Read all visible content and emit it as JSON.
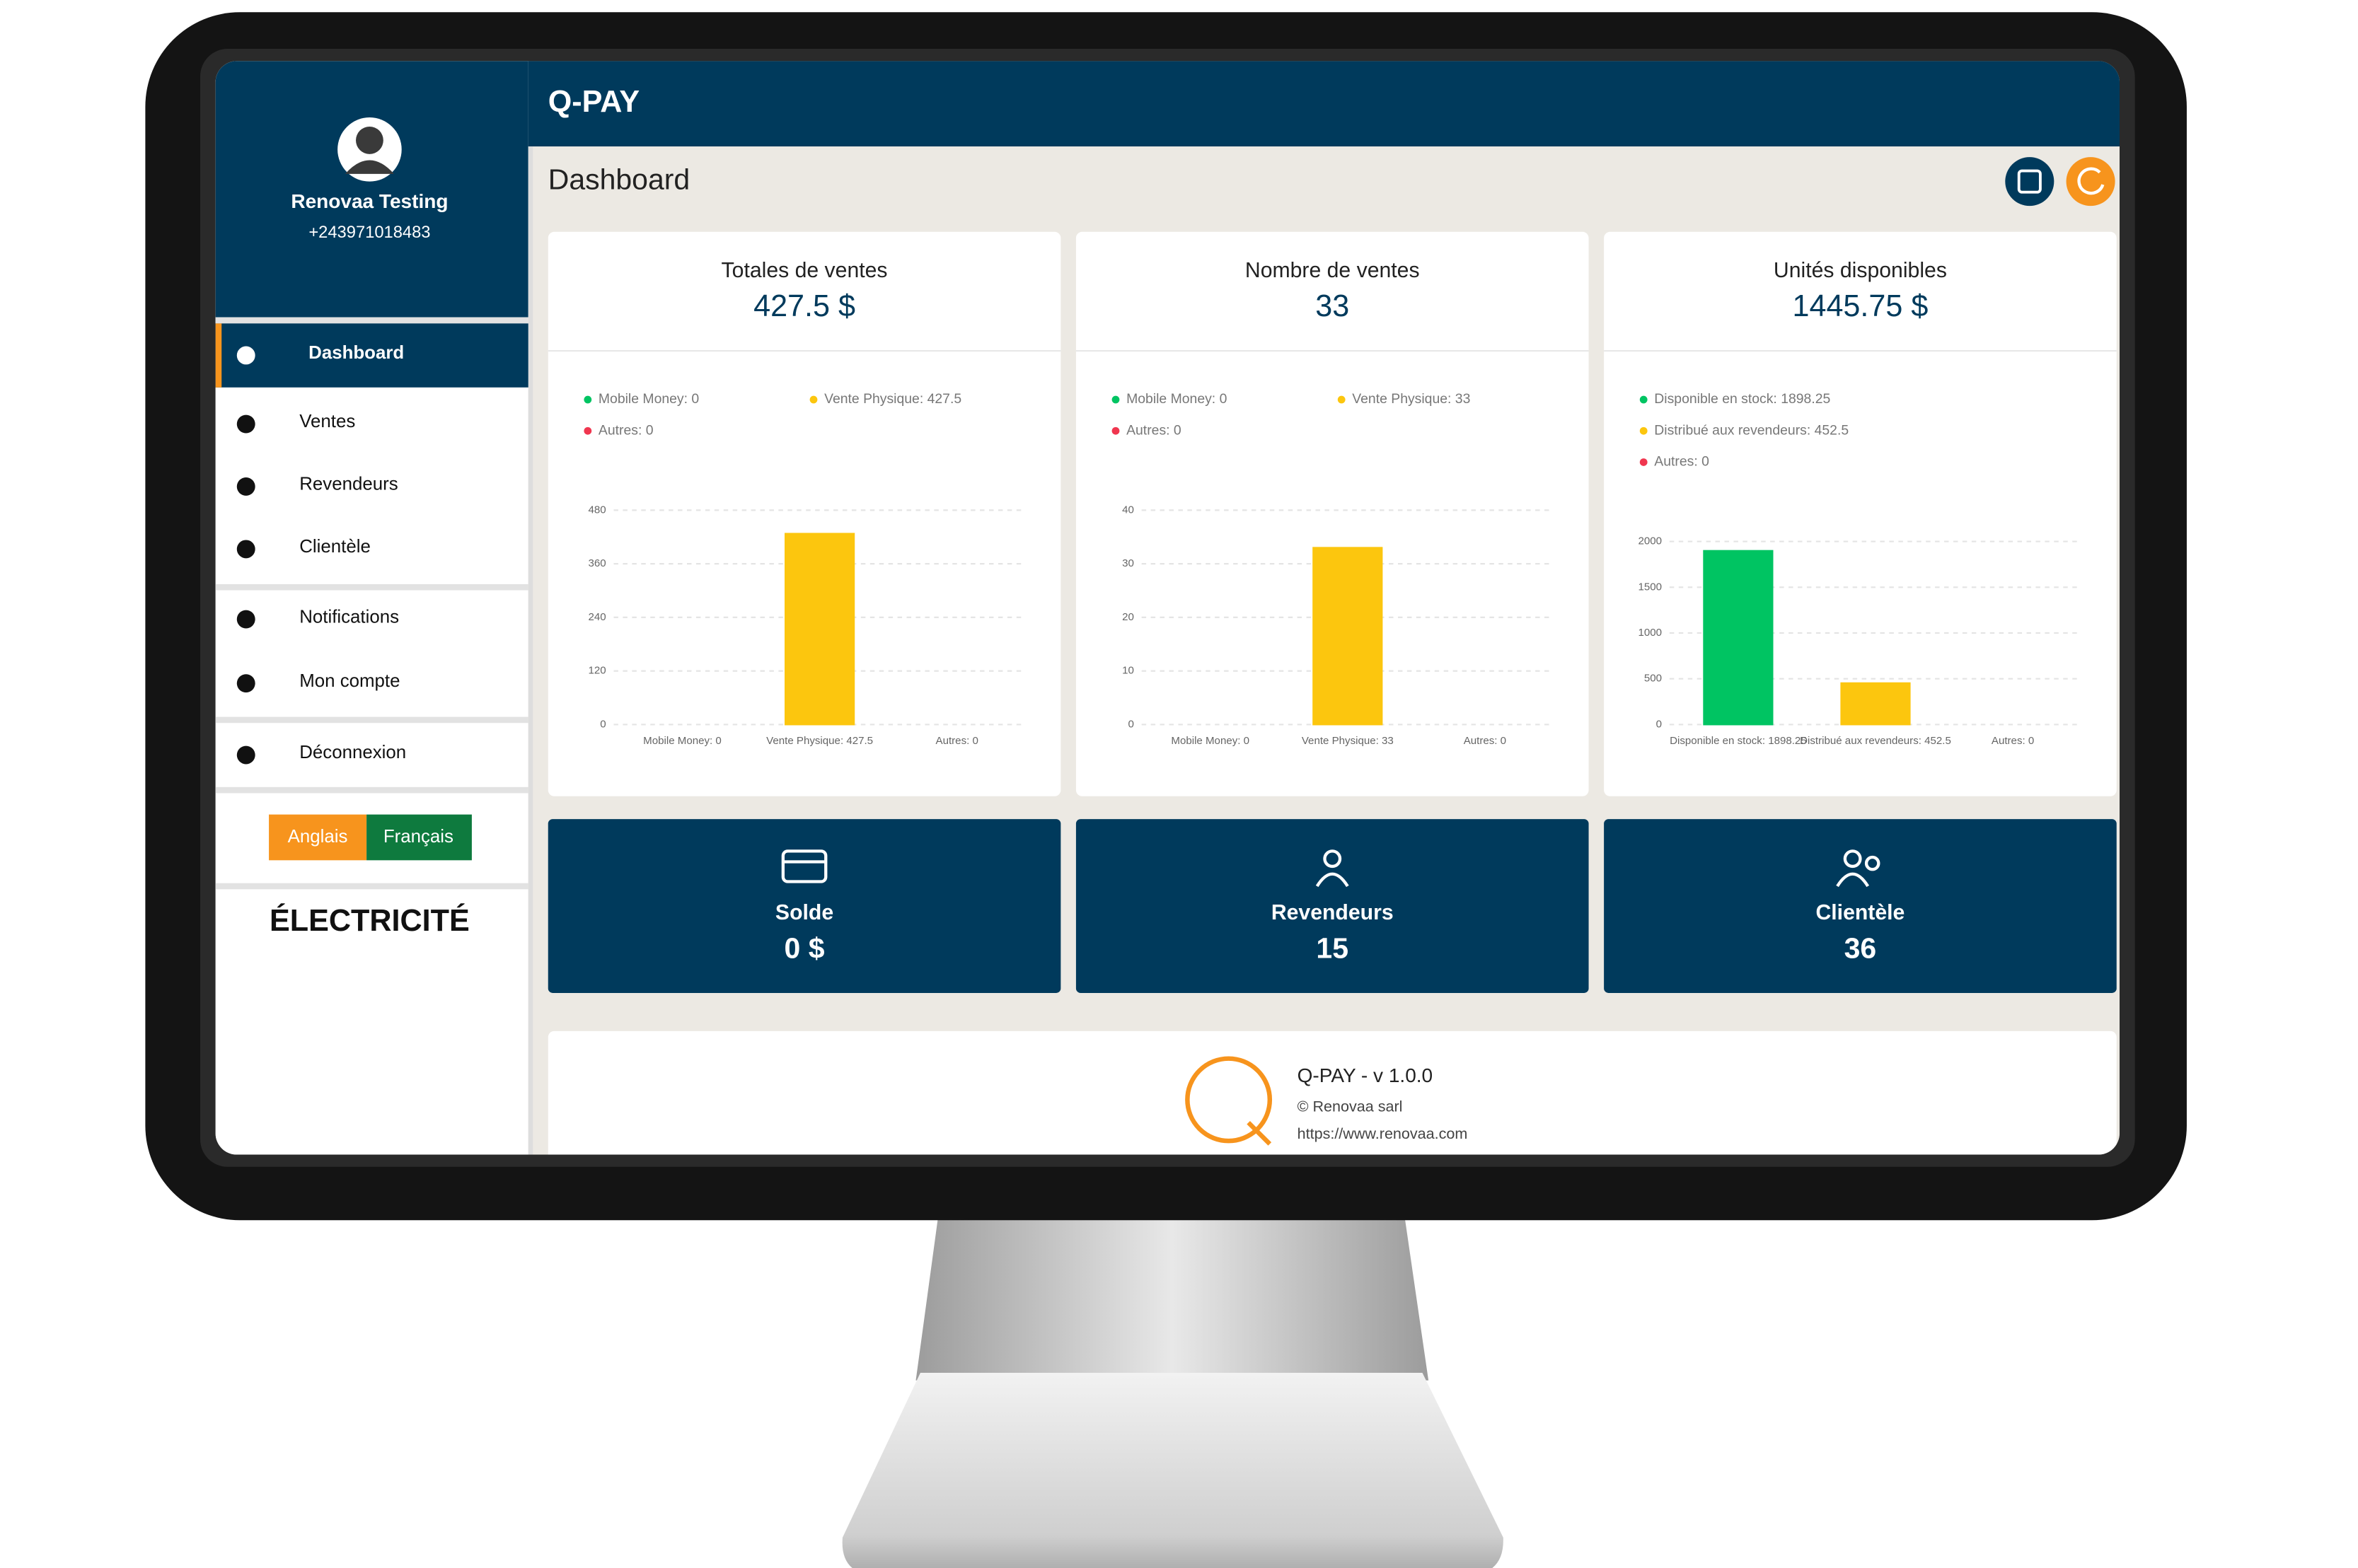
{
  "app_title": "Q-PAY",
  "user": {
    "name": "Renovaa Testing",
    "phone": "+243971018483"
  },
  "menu": [
    {
      "label": "Dashboard"
    },
    {
      "label": "Ventes"
    },
    {
      "label": "Revendeurs"
    },
    {
      "label": "Clientèle"
    },
    {
      "label": "Notifications"
    },
    {
      "label": "Mon compte"
    },
    {
      "label": "Déconnexion"
    }
  ],
  "languages": [
    "Anglais",
    "Français"
  ],
  "service": "ÉLECTRICITÉ",
  "page_title": "Dashboard",
  "stat_cards": [
    {
      "title": "Totales de ventes",
      "value": "427.5 $",
      "chart_data": {
        "type": "bar",
        "categories": [
          "Mobile Money: 0",
          "Vente Physique: 427.5",
          "Autres: 0"
        ],
        "values": [
          0,
          427.5,
          0
        ],
        "colors": [
          "#00c462",
          "#fcc60e",
          "#f0364f"
        ],
        "ylim": [
          0,
          480
        ],
        "yticks": [
          0,
          120,
          240,
          360,
          480
        ],
        "grid": true
      }
    },
    {
      "title": "Nombre de ventes",
      "value": "33",
      "chart_data": {
        "type": "bar",
        "categories": [
          "Mobile Money: 0",
          "Vente Physique: 33",
          "Autres: 0"
        ],
        "values": [
          0,
          33,
          0
        ],
        "colors": [
          "#00c462",
          "#fcc60e",
          "#f0364f"
        ],
        "ylim": [
          0,
          40
        ],
        "yticks": [
          0,
          10,
          20,
          30,
          40
        ],
        "grid": true
      }
    },
    {
      "title": "Unités disponibles",
      "value": "1445.75 $",
      "chart_data": {
        "type": "bar",
        "categories": [
          "Disponible en stock: 1898.25",
          "Distribué aux revendeurs: 452.5",
          "Autres: 0"
        ],
        "values": [
          1898.25,
          452.5,
          0
        ],
        "colors": [
          "#00c462",
          "#fcc60e",
          "#f0364f"
        ],
        "ylim": [
          0,
          2000
        ],
        "yticks": [
          0,
          500,
          1000,
          1500,
          2000
        ],
        "grid": true
      }
    }
  ],
  "summary_cards": [
    {
      "label": "Solde",
      "value": "0 $"
    },
    {
      "label": "Revendeurs",
      "value": "15"
    },
    {
      "label": "Clientèle",
      "value": "36"
    }
  ],
  "footer": {
    "title": "Q-PAY - v 1.0.0",
    "company": "© Renovaa sarl",
    "url": "https://www.renovaa.com"
  }
}
